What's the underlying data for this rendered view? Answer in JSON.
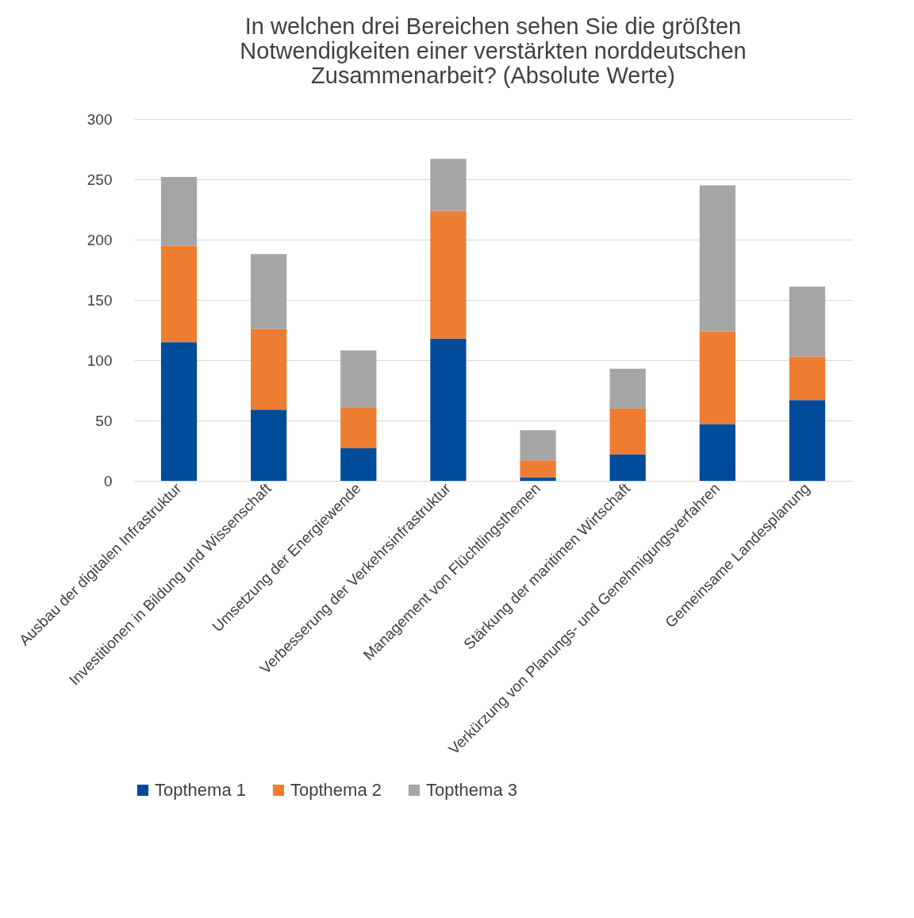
{
  "chart_data": {
    "type": "bar",
    "title": "In welchen drei Bereichen sehen Sie die größten Notwendigkeiten einer verstärkten norddeutschen Zusammenarbeit? (Absolute Werte)",
    "categories": [
      "Ausbau der digitalen Infrastruktur",
      "Investitionen in Bildung und Wissenschaft",
      "Umsetzung der Energiewende",
      "Verbesserung der Verkehrsinfrastruktur",
      "Management von Flüchtlingsthemen",
      "Stärkung der maritimen Wirtschaft",
      "Verkürzung von Planungs- und Genehmigungsverfahren",
      "Gemeinsame Landesplanung"
    ],
    "series": [
      {
        "name": "Topthema 1",
        "color": "#004c9b",
        "values": [
          115,
          59,
          27,
          118,
          3,
          22,
          47,
          67
        ]
      },
      {
        "name": "Topthema 2",
        "color": "#ed7d31",
        "values": [
          80,
          67,
          34,
          106,
          14,
          38,
          77,
          36
        ]
      },
      {
        "name": "Topthema 3",
        "color": "#a5a5a5",
        "values": [
          57,
          62,
          47,
          43,
          25,
          33,
          121,
          58
        ]
      }
    ],
    "stacked": true,
    "ylim": [
      0,
      300
    ],
    "yticks": [
      0,
      50,
      100,
      150,
      200,
      250,
      300
    ],
    "grid": "y",
    "legend": "bottom"
  }
}
